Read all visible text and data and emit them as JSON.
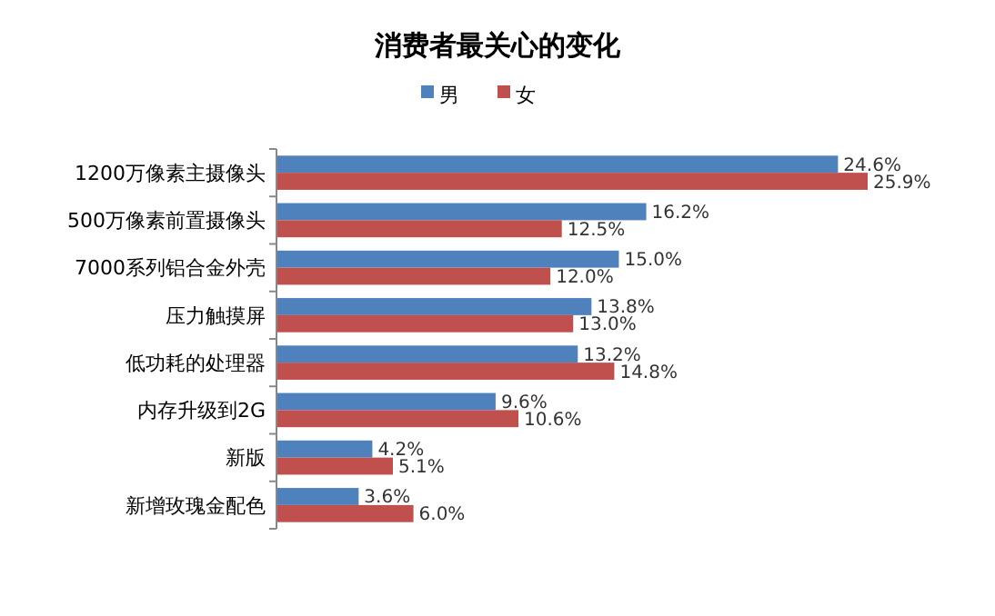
{
  "chart_data": {
    "type": "bar",
    "orientation": "horizontal",
    "title": "消费者最关心的变化",
    "categories": [
      "1200万像素主摄像头",
      "500万像素前置摄像头",
      "7000系列铝合金外壳",
      "压力触摸屏",
      "低功耗的处理器",
      "内存升级到2G",
      "新版",
      "新增玫瑰金配色"
    ],
    "series": [
      {
        "name": "男",
        "color": "#4f81bd",
        "values": [
          24.6,
          16.2,
          15.0,
          13.8,
          13.2,
          9.6,
          4.2,
          3.6
        ],
        "value_labels": [
          "24.6%",
          "16.2%",
          "15.0%",
          "13.8%",
          "13.2%",
          "9.6%",
          "4.2%",
          "3.6%"
        ]
      },
      {
        "name": "女",
        "color": "#c0504d",
        "values": [
          25.9,
          12.5,
          12.0,
          13.0,
          14.8,
          10.6,
          5.1,
          6.0
        ],
        "value_labels": [
          "25.9%",
          "12.5%",
          "12.0%",
          "13.0%",
          "14.8%",
          "10.6%",
          "5.1%",
          "6.0%"
        ]
      }
    ],
    "legend": "top",
    "grid": false
  }
}
